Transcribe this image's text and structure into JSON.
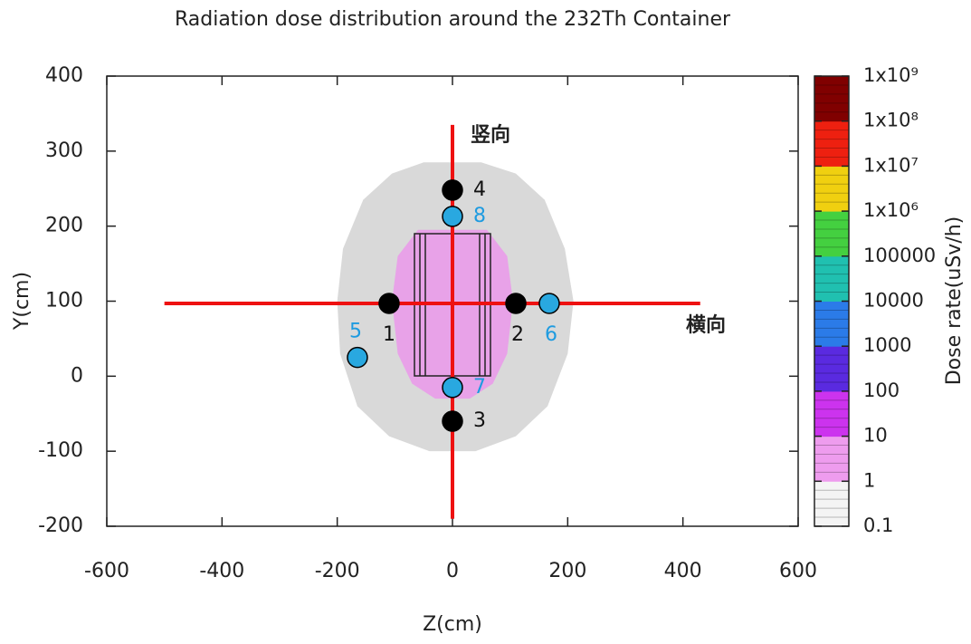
{
  "chart_data": {
    "type": "scatter",
    "title": "Radiation dose distribution around the 232Th Container",
    "x_label": "Z(cm)",
    "y_label": "Y(cm)",
    "xlim": [
      -600,
      600
    ],
    "ylim": [
      -200,
      400
    ],
    "xticks": [
      -600,
      -400,
      -200,
      0,
      200,
      400,
      600
    ],
    "yticks": [
      -200,
      -100,
      0,
      100,
      200,
      300,
      400
    ],
    "regions": [
      {
        "color": "#d9d9d9",
        "points": [
          [
            -50,
            285
          ],
          [
            50,
            285
          ],
          [
            110,
            270
          ],
          [
            160,
            235
          ],
          [
            195,
            170
          ],
          [
            210,
            100
          ],
          [
            200,
            30
          ],
          [
            165,
            -40
          ],
          [
            110,
            -80
          ],
          [
            40,
            -100
          ],
          [
            -40,
            -100
          ],
          [
            -110,
            -80
          ],
          [
            -165,
            -40
          ],
          [
            -195,
            30
          ],
          [
            -200,
            100
          ],
          [
            -190,
            170
          ],
          [
            -155,
            235
          ],
          [
            -105,
            270
          ]
        ]
      },
      {
        "color": "#e8a2e8",
        "points": [
          [
            -60,
            195
          ],
          [
            60,
            195
          ],
          [
            95,
            160
          ],
          [
            105,
            100
          ],
          [
            95,
            30
          ],
          [
            70,
            -10
          ],
          [
            30,
            -30
          ],
          [
            -30,
            -30
          ],
          [
            -70,
            -10
          ],
          [
            -95,
            30
          ],
          [
            -105,
            100
          ],
          [
            -95,
            160
          ]
        ]
      }
    ],
    "lines": [
      {
        "color": "#ee1111",
        "x": [
          -500,
          430
        ],
        "y": [
          97,
          97
        ]
      },
      {
        "color": "#ee1111",
        "x": [
          0,
          0
        ],
        "y": [
          -190,
          335
        ]
      }
    ],
    "annotations": [
      "横向",
      "竖向"
    ],
    "series": [
      {
        "color": "#000000",
        "label_color": "#111111",
        "labels": [
          "1",
          "2",
          "3",
          "4"
        ],
        "x": [
          -110,
          110,
          0,
          0
        ],
        "y": [
          97,
          97,
          -60,
          248
        ]
      },
      {
        "color": "#29a8e0",
        "label_color": "#1e9be0",
        "labels": [
          "5",
          "6",
          "7",
          "8"
        ],
        "x": [
          -165,
          168,
          0,
          0
        ],
        "y": [
          25,
          97,
          -15,
          213
        ]
      }
    ],
    "colorbar": {
      "label": "Dose rate(uSv/h)",
      "log": true,
      "lim": [
        0.1,
        1000000000
      ],
      "ticks": [
        0.1,
        1,
        10,
        100,
        1000,
        10000,
        100000,
        {
          "value": 1000000,
          "label": "1x10⁶"
        },
        {
          "value": 10000000,
          "label": "1x10⁷"
        },
        {
          "value": 100000000,
          "label": "1x10⁸"
        },
        {
          "value": 1000000000,
          "label": "1x10⁹"
        }
      ],
      "colors": [
        "#f4f4f4",
        "#ee9cee",
        "#cc33ee",
        "#5a2ae0",
        "#2b7be8",
        "#20c0b0",
        "#44d040",
        "#f0d010",
        "#ee2010",
        "#800000"
      ]
    }
  }
}
